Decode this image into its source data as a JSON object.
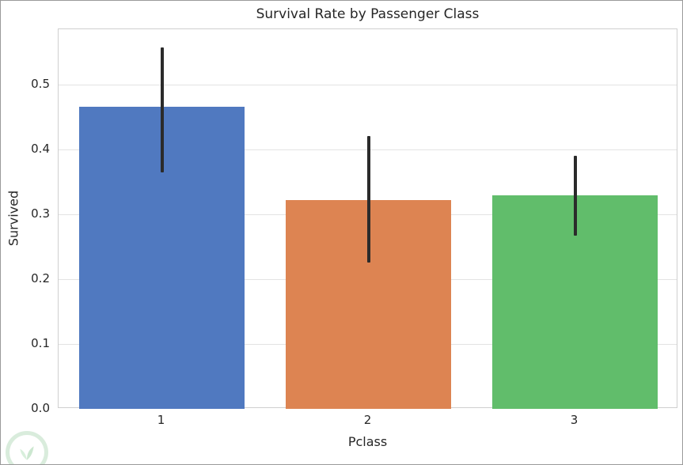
{
  "chart_data": {
    "type": "bar",
    "title": "Survival Rate by Passenger Class",
    "xlabel": "Pclass",
    "ylabel": "Survived",
    "categories": [
      "1",
      "2",
      "3"
    ],
    "values": [
      0.465,
      0.322,
      0.329
    ],
    "errors": [
      {
        "low": 0.365,
        "high": 0.557
      },
      {
        "low": 0.225,
        "high": 0.42
      },
      {
        "low": 0.267,
        "high": 0.39
      }
    ],
    "bar_colors": [
      "#5079c0",
      "#dd8452",
      "#61bd6b"
    ],
    "error_color": "#2b2b2b",
    "ylim": [
      0,
      0.585
    ],
    "yticks": [
      0.0,
      0.1,
      0.2,
      0.3,
      0.4,
      0.5
    ],
    "grid": true,
    "legend": "none",
    "style": "whitegrid"
  }
}
